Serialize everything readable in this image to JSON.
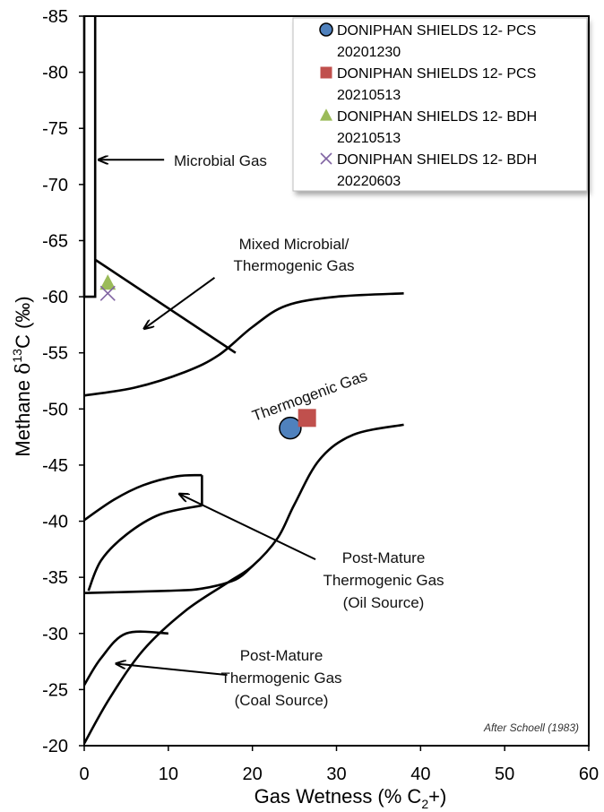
{
  "chart_data": {
    "type": "scatter",
    "xlabel": "Gas Wetness (% C",
    "xlabel_sub": "2",
    "xlabel_end": "+)",
    "ylabel_main": "Methane  ",
    "ylabel_delta": "δ",
    "ylabel_sup": "13",
    "ylabel_end": "C (‰)",
    "xlim": [
      0,
      60
    ],
    "ylim": [
      -20,
      -85
    ],
    "x_ticks": [
      "0",
      "10",
      "20",
      "30",
      "40",
      "50",
      "60"
    ],
    "y_ticks": [
      "-85",
      "-80",
      "-75",
      "-70",
      "-65",
      "-60",
      "-55",
      "-50",
      "-45",
      "-40",
      "-35",
      "-30",
      "-25",
      "-20"
    ],
    "series": [
      {
        "name": "DONIPHAN SHIELDS 12- PCS 20201230",
        "legend_line1": "DONIPHAN SHIELDS 12- PCS",
        "legend_line2": "20201230",
        "marker": "circle",
        "color": "#4f81bd",
        "points": [
          {
            "x": 24.5,
            "y": -48.3
          }
        ]
      },
      {
        "name": "DONIPHAN SHIELDS 12- PCS 20210513",
        "legend_line1": "DONIPHAN SHIELDS 12- PCS",
        "legend_line2": "20210513",
        "marker": "square",
        "color": "#c0504d",
        "points": [
          {
            "x": 26.5,
            "y": -49.2
          }
        ]
      },
      {
        "name": "DONIPHAN SHIELDS 12- BDH 20210513",
        "legend_line1": "DONIPHAN SHIELDS 12- BDH",
        "legend_line2": "20210513",
        "marker": "triangle",
        "color": "#9bbb59",
        "points": [
          {
            "x": 2.8,
            "y": -61.2
          }
        ]
      },
      {
        "name": "DONIPHAN SHIELDS 12- BDH 20220603",
        "legend_line1": "DONIPHAN SHIELDS 12- BDH",
        "legend_line2": "20220603",
        "marker": "x",
        "color": "#8064a2",
        "points": [
          {
            "x": 2.8,
            "y": -60.3
          }
        ]
      }
    ],
    "regions": {
      "microbial": "Microbial Gas",
      "mixed_line1": "Mixed Microbial/",
      "mixed_line2": "Thermogenic Gas",
      "thermogenic": "Thermogenic Gas",
      "oil_line1": "Post-Mature",
      "oil_line2": "Thermogenic Gas",
      "oil_line3": "(Oil Source)",
      "coal_line1": "Post-Mature",
      "coal_line2": "Thermogenic Gas",
      "coal_line3": "(Coal Source)"
    },
    "credit": "After Schoell (1983)",
    "grid": false,
    "legend_position": "top-right"
  }
}
